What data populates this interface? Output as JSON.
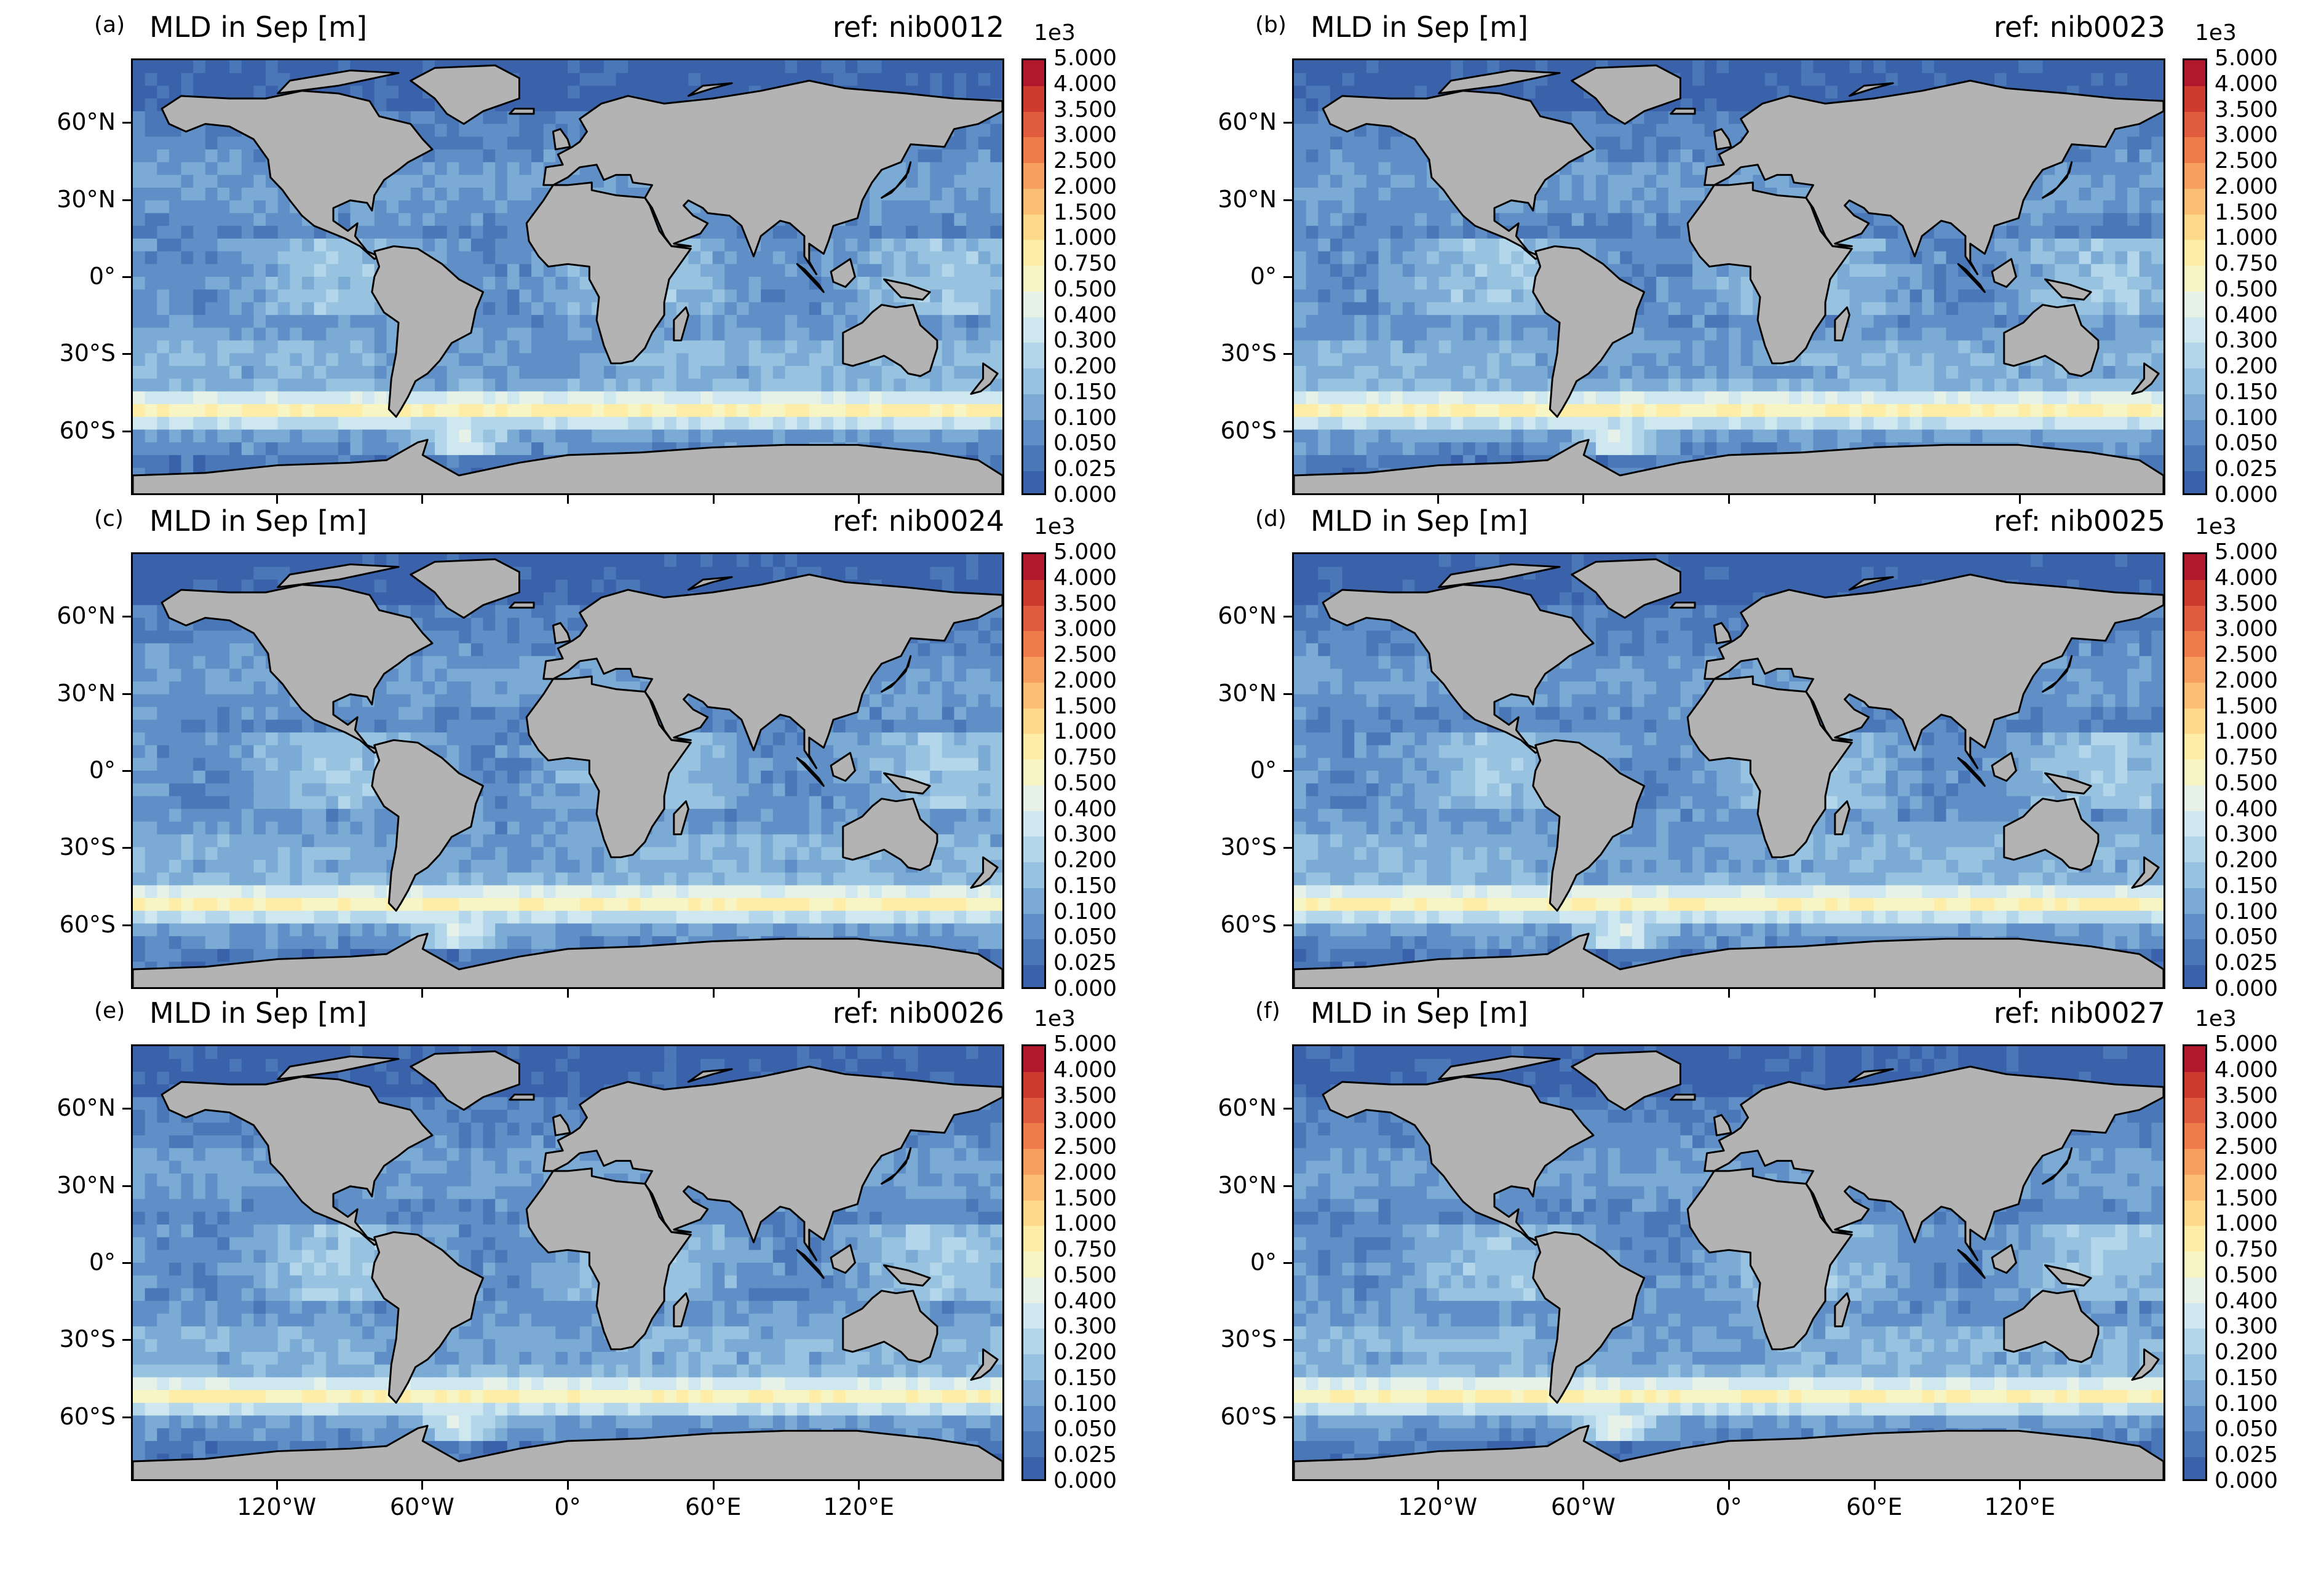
{
  "figure": {
    "x_ticks": [
      "120°W",
      "60°W",
      "0°",
      "60°E",
      "120°E"
    ],
    "y_ticks": [
      "60°N",
      "30°N",
      "0°",
      "30°S",
      "60°S"
    ],
    "colorbar": {
      "exponent_label": "1e3",
      "ticks": [
        "5.000",
        "4.000",
        "3.500",
        "3.000",
        "2.500",
        "2.000",
        "1.500",
        "1.000",
        "0.750",
        "0.500",
        "0.400",
        "0.300",
        "0.200",
        "0.150",
        "0.100",
        "0.050",
        "0.025",
        "0.000"
      ],
      "colors": [
        "#b2182b",
        "#cd3a2e",
        "#e15b3e",
        "#ef7b4b",
        "#f7a05d",
        "#fbbf73",
        "#fdd98c",
        "#fdeda6",
        "#f8f5c4",
        "#e6f1e8",
        "#cfe7ef",
        "#b3d6ea",
        "#97c2e0",
        "#7baad4",
        "#5f8fc6",
        "#4977b8",
        "#3a62ab"
      ],
      "colors_note_visible": "colormap RdYlBu_r style"
    },
    "land_color": "#b3b3b3",
    "ocean_base_color": "#4372b5"
  },
  "panels": [
    {
      "letter": "(a)",
      "title": "MLD in Sep [m]",
      "ref": "ref: nib0012",
      "show_x_ticks": false
    },
    {
      "letter": "(b)",
      "title": "MLD in Sep [m]",
      "ref": "ref: nib0023",
      "show_x_ticks": false
    },
    {
      "letter": "(c)",
      "title": "MLD in Sep [m]",
      "ref": "ref: nib0024",
      "show_x_ticks": false
    },
    {
      "letter": "(d)",
      "title": "MLD in Sep [m]",
      "ref": "ref: nib0025",
      "show_x_ticks": false
    },
    {
      "letter": "(e)",
      "title": "MLD in Sep [m]",
      "ref": "ref: nib0026",
      "show_x_ticks": true
    },
    {
      "letter": "(f)",
      "title": "MLD in Sep [m]",
      "ref": "ref: nib0027",
      "show_x_ticks": true
    }
  ]
}
